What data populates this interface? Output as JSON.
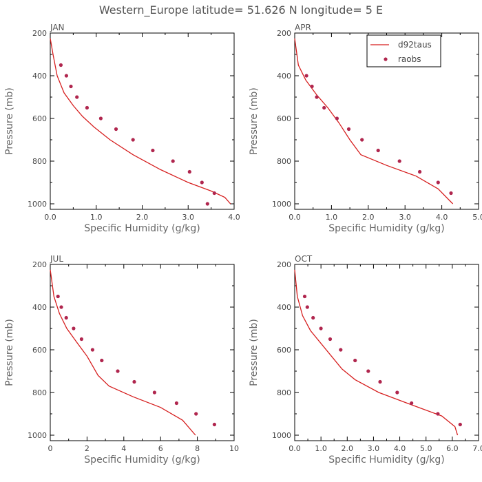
{
  "header": {
    "title": "Western_Europe  latitude= 51.626 N longitude= 5 E"
  },
  "colors": {
    "model_line": "#d61f1f",
    "obs_marker": "#b0264e"
  },
  "legend": {
    "entries": [
      "d92taus",
      "raobs"
    ]
  },
  "chart_data": [
    {
      "type": "line",
      "panel": "JAN",
      "xlabel": "Specific Humidity (g/kg)",
      "ylabel": "Pressure (mb)",
      "xlim": [
        0,
        4
      ],
      "ylim": [
        200,
        1000
      ],
      "y_inverted": false,
      "xticks": [
        0,
        1,
        2,
        3,
        4
      ],
      "xtick_labels": [
        "0.0",
        "1.0",
        "2.0",
        "3.0",
        "4.0"
      ],
      "yticks": [
        200,
        400,
        600,
        800,
        1000
      ],
      "ytick_labels": [
        "200",
        "400",
        "600",
        "800",
        "1000"
      ],
      "series": [
        {
          "name": "d92taus",
          "kind": "line",
          "x": [
            0.0,
            0.06,
            0.15,
            0.3,
            0.5,
            0.7,
            0.95,
            1.3,
            1.8,
            2.4,
            3.0,
            3.5,
            3.8,
            3.92
          ],
          "y": [
            225,
            300,
            400,
            480,
            540,
            590,
            640,
            700,
            770,
            840,
            900,
            940,
            970,
            1000
          ]
        },
        {
          "name": "raobs",
          "kind": "scatter",
          "x": [
            0.23,
            0.35,
            0.45,
            0.58,
            0.8,
            1.1,
            1.43,
            1.8,
            2.23,
            2.67,
            3.03,
            3.3,
            3.57,
            3.42
          ],
          "y": [
            350,
            400,
            450,
            500,
            550,
            600,
            650,
            700,
            750,
            800,
            850,
            900,
            950,
            1000
          ]
        }
      ]
    },
    {
      "type": "line",
      "panel": "APR",
      "xlabel": "Specific Humidity (g/kg)",
      "ylabel": "Pressure (mb)",
      "xlim": [
        0,
        5
      ],
      "ylim": [
        200,
        1000
      ],
      "xticks": [
        0,
        1,
        2,
        3,
        4,
        5
      ],
      "xtick_labels": [
        "0.0",
        "1.0",
        "2.0",
        "3.0",
        "4.0",
        "5.0"
      ],
      "yticks": [
        200,
        400,
        600,
        800,
        1000
      ],
      "ytick_labels": [
        "200",
        "400",
        "600",
        "800",
        "1000"
      ],
      "series": [
        {
          "name": "d92taus",
          "kind": "line",
          "x": [
            0.0,
            0.1,
            0.3,
            0.6,
            0.9,
            1.2,
            1.5,
            1.8,
            2.5,
            3.3,
            3.9,
            4.3
          ],
          "y": [
            225,
            350,
            420,
            490,
            550,
            620,
            700,
            770,
            820,
            870,
            930,
            1000
          ]
        },
        {
          "name": "raobs",
          "kind": "scatter",
          "x": [
            0.32,
            0.47,
            0.6,
            0.8,
            1.15,
            1.47,
            1.83,
            2.27,
            2.85,
            3.4,
            3.9,
            4.25
          ],
          "y": [
            400,
            450,
            500,
            550,
            600,
            650,
            700,
            750,
            800,
            850,
            900,
            950
          ]
        }
      ]
    },
    {
      "type": "line",
      "panel": "JUL",
      "xlabel": "Specific Humidity (g/kg)",
      "ylabel": "Pressure (mb)",
      "xlim": [
        0,
        10
      ],
      "ylim": [
        200,
        1000
      ],
      "xticks": [
        0,
        2,
        4,
        6,
        8,
        10
      ],
      "xtick_labels": [
        "0",
        "2",
        "4",
        "6",
        "8",
        "10"
      ],
      "yticks": [
        200,
        400,
        600,
        800,
        1000
      ],
      "ytick_labels": [
        "200",
        "400",
        "600",
        "800",
        "1000"
      ],
      "series": [
        {
          "name": "d92taus",
          "kind": "line",
          "x": [
            0.0,
            0.2,
            0.5,
            0.9,
            1.4,
            2.0,
            2.6,
            3.2,
            4.5,
            6.0,
            7.2,
            7.9
          ],
          "y": [
            225,
            350,
            430,
            500,
            560,
            630,
            720,
            770,
            820,
            870,
            930,
            1000
          ]
        },
        {
          "name": "raobs",
          "kind": "scatter",
          "x": [
            0.42,
            0.6,
            0.87,
            1.27,
            1.7,
            2.3,
            2.8,
            3.67,
            4.57,
            5.67,
            6.87,
            7.93,
            8.93
          ],
          "y": [
            350,
            400,
            450,
            500,
            550,
            600,
            650,
            700,
            750,
            800,
            850,
            900,
            950
          ]
        }
      ]
    },
    {
      "type": "line",
      "panel": "OCT",
      "xlabel": "Specific Humidity (g/kg)",
      "ylabel": "Pressure (mb)",
      "xlim": [
        0,
        7
      ],
      "ylim": [
        200,
        1000
      ],
      "xticks": [
        0,
        1,
        2,
        3,
        4,
        5,
        6,
        7
      ],
      "xtick_labels": [
        "0.0",
        "1.0",
        "2.0",
        "3.0",
        "4.0",
        "5.0",
        "6.0",
        "7.0"
      ],
      "yticks": [
        200,
        400,
        600,
        800,
        1000
      ],
      "ytick_labels": [
        "200",
        "400",
        "600",
        "800",
        "1000"
      ],
      "series": [
        {
          "name": "d92taus",
          "kind": "line",
          "x": [
            0.0,
            0.1,
            0.3,
            0.6,
            1.0,
            1.4,
            1.8,
            2.3,
            3.2,
            4.5,
            5.6,
            6.1,
            6.2
          ],
          "y": [
            225,
            350,
            440,
            510,
            570,
            630,
            690,
            740,
            800,
            860,
            910,
            960,
            1000
          ]
        },
        {
          "name": "raobs",
          "kind": "scatter",
          "x": [
            0.38,
            0.48,
            0.7,
            1.0,
            1.35,
            1.75,
            2.3,
            2.8,
            3.25,
            3.9,
            4.45,
            5.45,
            6.3
          ],
          "y": [
            350,
            400,
            450,
            500,
            550,
            600,
            650,
            700,
            750,
            800,
            850,
            900,
            950
          ]
        }
      ]
    }
  ]
}
